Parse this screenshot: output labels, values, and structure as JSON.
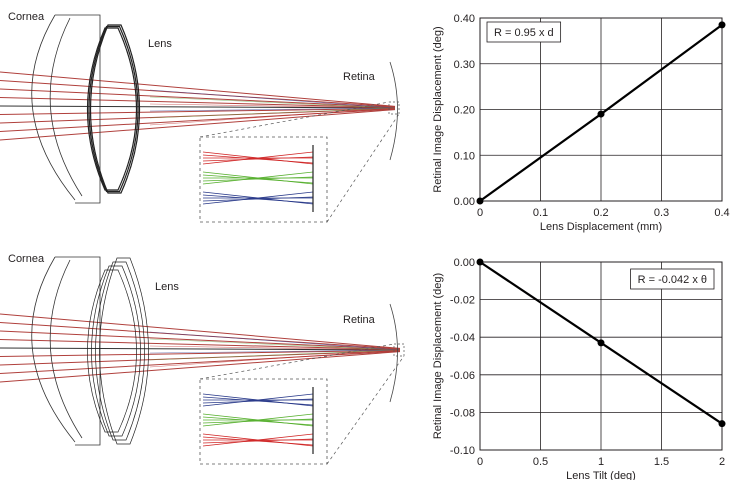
{
  "diagram": {
    "top": {
      "cornea": "Cornea",
      "lens": "Lens",
      "retina": "Retina"
    },
    "bottom": {
      "cornea": "Cornea",
      "lens": "Lens",
      "retina": "Retina"
    }
  },
  "chart_data": [
    {
      "type": "line",
      "annotation": "R = 0.95 x d",
      "x_label": "Lens Displacement (mm)",
      "y_label": "Retinal Image Displacement (deg)",
      "x": [
        0,
        0.2,
        0.4
      ],
      "series": [
        {
          "color": "#000000",
          "values": [
            0,
            0.19,
            0.385
          ]
        }
      ],
      "xlim": [
        0,
        0.4
      ],
      "xticks": [
        0,
        0.1,
        0.2,
        0.3,
        0.4
      ],
      "ylim": [
        0,
        0.4
      ],
      "yticks": [
        {
          "value": 0,
          "label": "0.00"
        },
        {
          "value": 0.1,
          "label": "0.10"
        },
        {
          "value": 0.2,
          "label": "0.20"
        },
        {
          "value": 0.3,
          "label": "0.30"
        },
        {
          "value": 0.4,
          "label": "0.40"
        }
      ],
      "grid": true
    },
    {
      "type": "line",
      "annotation": "R = -0.042 x θ",
      "x_label": "Lens Tilt (deg)",
      "y_label": "Retinal Image Displacement (deg)",
      "x": [
        0,
        1,
        2
      ],
      "series": [
        {
          "color": "#000000",
          "values": [
            0,
            -0.043,
            -0.086
          ]
        }
      ],
      "xlim": [
        0,
        2
      ],
      "xticks": [
        0,
        0.5,
        1,
        1.5,
        2
      ],
      "ylim": [
        -0.1,
        0
      ],
      "yticks": [
        {
          "value": -0.1,
          "label": "-0.10"
        },
        {
          "value": -0.08,
          "label": "-0.08"
        },
        {
          "value": -0.06,
          "label": "-0.06"
        },
        {
          "value": -0.04,
          "label": "-0.04"
        },
        {
          "value": -0.02,
          "label": "-0.02"
        },
        {
          "value": 0,
          "label": "0.00"
        }
      ],
      "grid": true
    }
  ]
}
